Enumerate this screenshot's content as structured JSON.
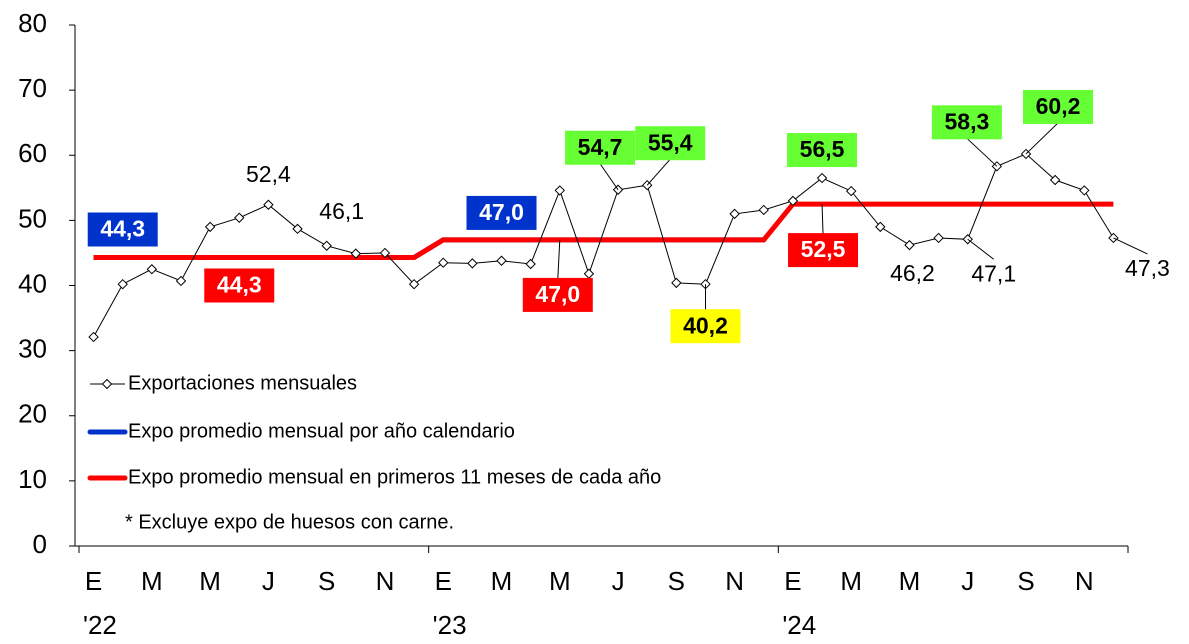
{
  "chart_data": {
    "type": "line",
    "categories": [
      "E",
      null,
      "M",
      null,
      "M",
      null,
      "J",
      null,
      "S",
      null,
      "N",
      null,
      "E",
      null,
      "M",
      null,
      "M",
      null,
      "J",
      null,
      "S",
      null,
      "N",
      null,
      "E",
      null,
      "M",
      null,
      "M",
      null,
      "J",
      null,
      "S",
      null,
      "N",
      null
    ],
    "year_labels": [
      "'22",
      "'23",
      "'24"
    ],
    "ylim": [
      0,
      80
    ],
    "yticks": [
      0,
      10,
      20,
      30,
      40,
      50,
      60,
      70,
      80
    ],
    "note": "* Excluye expo de huesos con carne.",
    "series": [
      {
        "name": "Exportaciones mensuales",
        "color": "#000000",
        "values": [
          32.1,
          40.2,
          42.5,
          40.7,
          49.0,
          50.4,
          52.4,
          48.7,
          46.1,
          44.9,
          45.0,
          40.2,
          43.5,
          43.4,
          43.8,
          43.3,
          54.6,
          41.8,
          54.7,
          55.4,
          40.4,
          40.2,
          51.0,
          51.6,
          53.0,
          56.5,
          54.5,
          49.0,
          46.2,
          47.3,
          47.1,
          58.3,
          60.2,
          56.2,
          54.6,
          47.3
        ],
        "value_labels": [
          null,
          null,
          null,
          null,
          null,
          null,
          "52,4",
          null,
          "46,1",
          null,
          null,
          null,
          null,
          null,
          null,
          null,
          null,
          null,
          "54,7",
          "55,4",
          null,
          "40,2",
          null,
          null,
          null,
          "56,5",
          null,
          null,
          "46,2",
          null,
          "47,1",
          "58,3",
          "60,2",
          null,
          null,
          "47,3"
        ],
        "label_colors": [
          null,
          null,
          null,
          null,
          null,
          null,
          null,
          null,
          null,
          null,
          null,
          null,
          null,
          null,
          null,
          null,
          null,
          null,
          "#66ff33",
          "#66ff33",
          null,
          "#ffff00",
          null,
          null,
          null,
          "#66ff33",
          null,
          null,
          null,
          null,
          null,
          "#66ff33",
          "#66ff33",
          null,
          null,
          null
        ]
      },
      {
        "name": "Expo promedio mensual por año calendario",
        "color": "#0033cc",
        "values": [
          44.3,
          44.3,
          44.3,
          44.3,
          44.3,
          44.3,
          44.3,
          44.3,
          44.3,
          44.3,
          44.3,
          44.3,
          47.0,
          47.0,
          47.0,
          47.0,
          47.0,
          47.0,
          47.0,
          47.0,
          47.0,
          47.0,
          47.0,
          47.0,
          null,
          null,
          null,
          null,
          null,
          null,
          null,
          null,
          null,
          null,
          null,
          null
        ],
        "value_labels": [
          null,
          "44,3",
          null,
          null,
          null,
          null,
          null,
          null,
          null,
          null,
          null,
          null,
          null,
          null,
          "47,0",
          null,
          null,
          null,
          null,
          null,
          null,
          null,
          null,
          null,
          null,
          null,
          null,
          null,
          null,
          null,
          null,
          null,
          null,
          null,
          null,
          null
        ]
      },
      {
        "name": "Expo promedio mensual en primeros 11 meses de cada año",
        "color": "#ff0000",
        "values": [
          44.3,
          44.3,
          44.3,
          44.3,
          44.3,
          44.3,
          44.3,
          44.3,
          44.3,
          44.3,
          44.3,
          44.3,
          47.0,
          47.0,
          47.0,
          47.0,
          47.0,
          47.0,
          47.0,
          47.0,
          47.0,
          47.0,
          47.0,
          47.0,
          52.5,
          52.5,
          52.5,
          52.5,
          52.5,
          52.5,
          52.5,
          52.5,
          52.5,
          52.5,
          52.5,
          52.5
        ],
        "value_labels": [
          null,
          null,
          null,
          null,
          null,
          "44,3",
          null,
          null,
          null,
          null,
          null,
          null,
          null,
          null,
          null,
          null,
          "47,0",
          null,
          null,
          null,
          null,
          null,
          null,
          null,
          null,
          "52,5",
          null,
          null,
          null,
          null,
          null,
          null,
          null,
          null,
          null,
          null
        ]
      }
    ]
  }
}
